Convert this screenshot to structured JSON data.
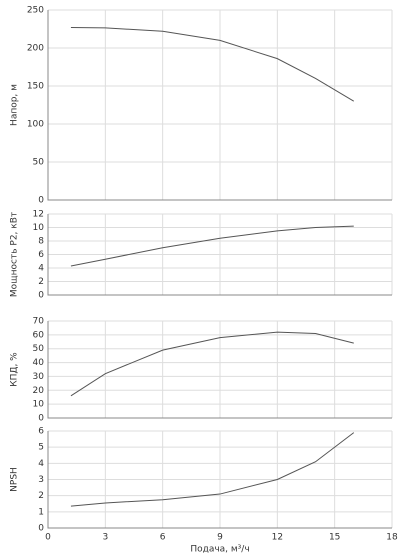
{
  "chart_data": [
    {
      "type": "line",
      "ylabel": "Напор, м",
      "x": [
        1.2,
        3,
        6,
        9,
        12,
        14,
        16
      ],
      "values": [
        227,
        226.5,
        222,
        210,
        186,
        160,
        130
      ],
      "color": "#555555",
      "xlim": [
        0,
        18
      ],
      "xticks": [
        0,
        3,
        6,
        9,
        12,
        15,
        18
      ],
      "ylim": [
        0,
        250
      ],
      "yticks": [
        0,
        50,
        100,
        150,
        200,
        250
      ],
      "grid": true
    },
    {
      "type": "line",
      "ylabel": "Мощность P2, кВт",
      "x": [
        1.2,
        3,
        6,
        9,
        12,
        14,
        16
      ],
      "values": [
        4.3,
        5.3,
        7,
        8.4,
        9.5,
        10,
        10.2
      ],
      "color": "#555555",
      "xlim": [
        0,
        18
      ],
      "xticks": [
        0,
        3,
        6,
        9,
        12,
        15,
        18
      ],
      "ylim": [
        0,
        12
      ],
      "yticks": [
        0,
        2,
        4,
        6,
        8,
        10,
        12
      ],
      "grid": true
    },
    {
      "type": "line",
      "ylabel": "КПД, %",
      "x": [
        1.2,
        3,
        6,
        9,
        12,
        14,
        16
      ],
      "values": [
        16,
        32,
        49,
        58,
        62,
        61,
        54
      ],
      "color": "#555555",
      "xlim": [
        0,
        18
      ],
      "xticks": [
        0,
        3,
        6,
        9,
        12,
        15,
        18
      ],
      "ylim": [
        0,
        70
      ],
      "yticks": [
        0,
        10,
        20,
        30,
        40,
        50,
        60,
        70
      ],
      "grid": true
    },
    {
      "type": "line",
      "ylabel": "NPSH",
      "xlabel": "Подача, м³/ч",
      "x": [
        1.2,
        3,
        6,
        9,
        12,
        14,
        16
      ],
      "values": [
        1.35,
        1.55,
        1.75,
        2.1,
        3.0,
        4.1,
        5.9
      ],
      "color": "#555555",
      "xlim": [
        0,
        18
      ],
      "xticks": [
        0,
        3,
        6,
        9,
        12,
        15,
        18
      ],
      "ylim": [
        0,
        6
      ],
      "yticks": [
        0,
        1,
        2,
        3,
        4,
        5,
        6
      ],
      "grid": true
    }
  ]
}
